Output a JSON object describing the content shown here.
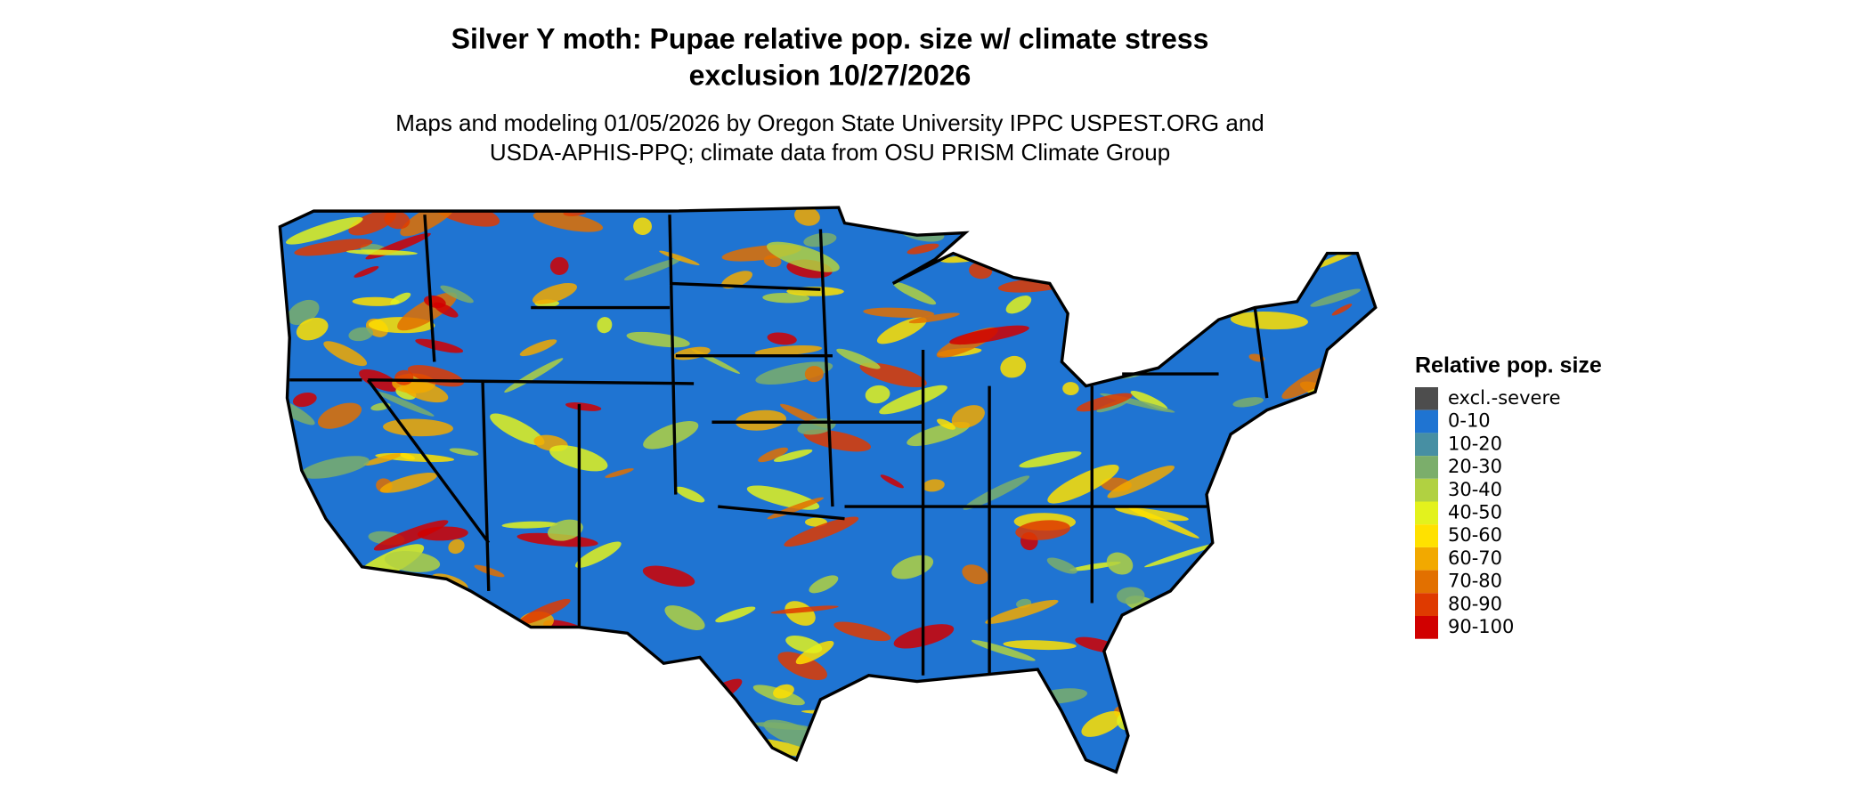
{
  "header": {
    "title_lines": [
      "Silver Y moth: Pupae relative pop. size w/ climate stress",
      "exclusion 10/27/2026"
    ],
    "subtitle_lines": [
      "Maps and modeling 01/05/2026 by Oregon State University IPPC USPEST.ORG and",
      "USDA-APHIS-PPQ; climate data from OSU PRISM Climate Group"
    ]
  },
  "legend": {
    "title": "Relative pop. size",
    "items": [
      {
        "label": "excl.-severe",
        "color": "#4d4d4d"
      },
      {
        "label": "0-10",
        "color": "#1f74d2"
      },
      {
        "label": "10-20",
        "color": "#478fa3"
      },
      {
        "label": "20-30",
        "color": "#7bae6b"
      },
      {
        "label": "30-40",
        "color": "#b1d141"
      },
      {
        "label": "40-50",
        "color": "#e3f21d"
      },
      {
        "label": "50-60",
        "color": "#ffe100"
      },
      {
        "label": "60-70",
        "color": "#f2a900"
      },
      {
        "label": "70-80",
        "color": "#e27000"
      },
      {
        "label": "80-90",
        "color": "#df3a00"
      },
      {
        "label": "90-100",
        "color": "#d10000"
      }
    ]
  }
}
